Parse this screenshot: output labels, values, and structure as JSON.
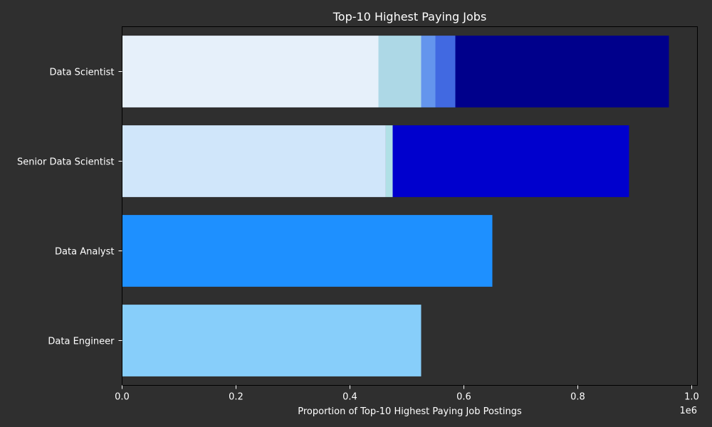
{
  "chart_data": {
    "type": "bar",
    "orientation": "horizontal",
    "stacked": true,
    "title": "Top-10 Highest Paying Jobs",
    "xlabel": "Proportion of Top-10 Highest Paying Job Postings",
    "ylabel": "",
    "x_offset_label": "1e6",
    "xlim": [
      0,
      1010000
    ],
    "xticks": [
      0,
      200000,
      400000,
      600000,
      800000,
      1000000
    ],
    "xtick_labels": [
      "0.0",
      "0.2",
      "0.4",
      "0.6",
      "0.8",
      "1.0"
    ],
    "categories": [
      "Data Scientist",
      "Senior Data Scientist",
      "Data Analyst",
      "Data Engineer"
    ],
    "grid": false,
    "legend": "none",
    "segments": [
      [
        {
          "value": 450000,
          "color": "#e6f0fa"
        },
        {
          "value": 75000,
          "color": "#add8e6"
        },
        {
          "value": 25000,
          "color": "#6495ed"
        },
        {
          "value": 35000,
          "color": "#4169e1"
        },
        {
          "value": 375000,
          "color": "#00008b"
        }
      ],
      [
        {
          "value": 463000,
          "color": "#d0e6fa"
        },
        {
          "value": 12000,
          "color": "#b0e0e6"
        },
        {
          "value": 415000,
          "color": "#0000cd"
        }
      ],
      [
        {
          "value": 650000,
          "color": "#1e90ff"
        }
      ],
      [
        {
          "value": 525000,
          "color": "#87cefa"
        }
      ]
    ]
  }
}
